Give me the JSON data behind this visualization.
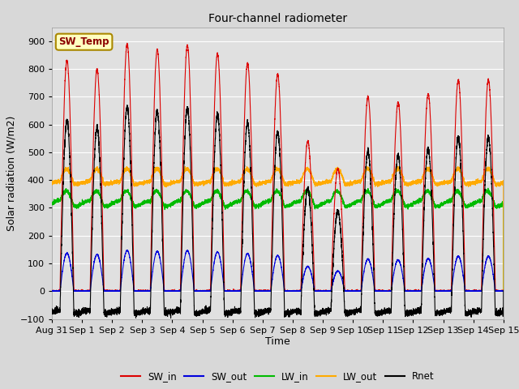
{
  "title": "Four-channel radiometer",
  "xlabel": "Time",
  "ylabel": "Solar radiation (W/m2)",
  "ylim": [
    -100,
    950
  ],
  "xlim": [
    0,
    15.0
  ],
  "fig_facecolor": "#d8d8d8",
  "plot_bg_color": "#e0e0e0",
  "grid_color": "#ffffff",
  "colors": {
    "SW_in": "#dd0000",
    "SW_out": "#0000dd",
    "LW_in": "#00bb00",
    "LW_out": "#ffaa00",
    "Rnet": "#000000"
  },
  "legend_items": [
    "SW_in",
    "SW_out",
    "LW_in",
    "LW_out",
    "Rnet"
  ],
  "annotation_text": "SW_Temp",
  "annotation_box_color": "#ffffc0",
  "annotation_border_color": "#aa8800",
  "tick_labels": [
    "Aug 31",
    "Sep 1",
    "Sep 2",
    "Sep 3",
    "Sep 4",
    "Sep 5",
    "Sep 6",
    "Sep 7",
    "Sep 8",
    "Sep 9",
    "Sep 10",
    "Sep 11",
    "Sep 12",
    "Sep 13",
    "Sep 14",
    "Sep 15"
  ],
  "yticks": [
    -100,
    0,
    100,
    200,
    300,
    400,
    500,
    600,
    700,
    800,
    900
  ]
}
